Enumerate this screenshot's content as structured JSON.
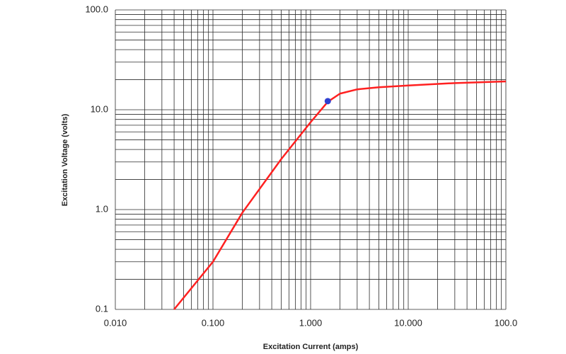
{
  "chart_data": {
    "type": "line",
    "x_label": "Excitation Current (amps)",
    "y_label": "Excitation Voltage (volts)",
    "log_x": true,
    "log_y": true,
    "grid": true,
    "xlim": [
      0.01,
      100
    ],
    "ylim": [
      0.1,
      100
    ],
    "xticks": [
      {
        "value": 0.01,
        "label": "0.010"
      },
      {
        "value": 0.1,
        "label": "0.100"
      },
      {
        "value": 1,
        "label": "1.000"
      },
      {
        "value": 10,
        "label": "10.000"
      },
      {
        "value": 100,
        "label": "100.0"
      }
    ],
    "yticks": [
      0.1,
      {
        "value": 1,
        "label": "1.0"
      },
      {
        "value": 10,
        "label": "10.0"
      },
      {
        "value": 100,
        "label": "100.0"
      }
    ],
    "x_minor_ticks": [
      0.02,
      0.03,
      0.04,
      0.05,
      0.06,
      0.07,
      0.08,
      0.09,
      0.2,
      0.3,
      0.4,
      0.5,
      0.6,
      0.7,
      0.8,
      0.9,
      2,
      3,
      4,
      5,
      6,
      7,
      8,
      9,
      20,
      30,
      40,
      50,
      60,
      70,
      80,
      90
    ],
    "y_minor_ticks": [
      0.2,
      0.3,
      0.4,
      0.5,
      0.6,
      0.7,
      0.8,
      0.9,
      2,
      3,
      4,
      5,
      6,
      7,
      8,
      9,
      20,
      30,
      40,
      50,
      60,
      70,
      80,
      90
    ],
    "series": [
      {
        "color": "#ff2020",
        "x": [
          0.04,
          0.1,
          0.2,
          0.5,
          1.0,
          1.5,
          2,
          3,
          5,
          10,
          30,
          100
        ],
        "values": [
          0.1,
          0.3,
          0.93,
          3.2,
          7.5,
          12,
          14.5,
          16,
          16.8,
          17.5,
          18.5,
          19.2
        ]
      },
      {
        "color": "#3040d0",
        "x": [
          1.5
        ],
        "values": [
          12.2
        ],
        "marker": true
      }
    ]
  }
}
